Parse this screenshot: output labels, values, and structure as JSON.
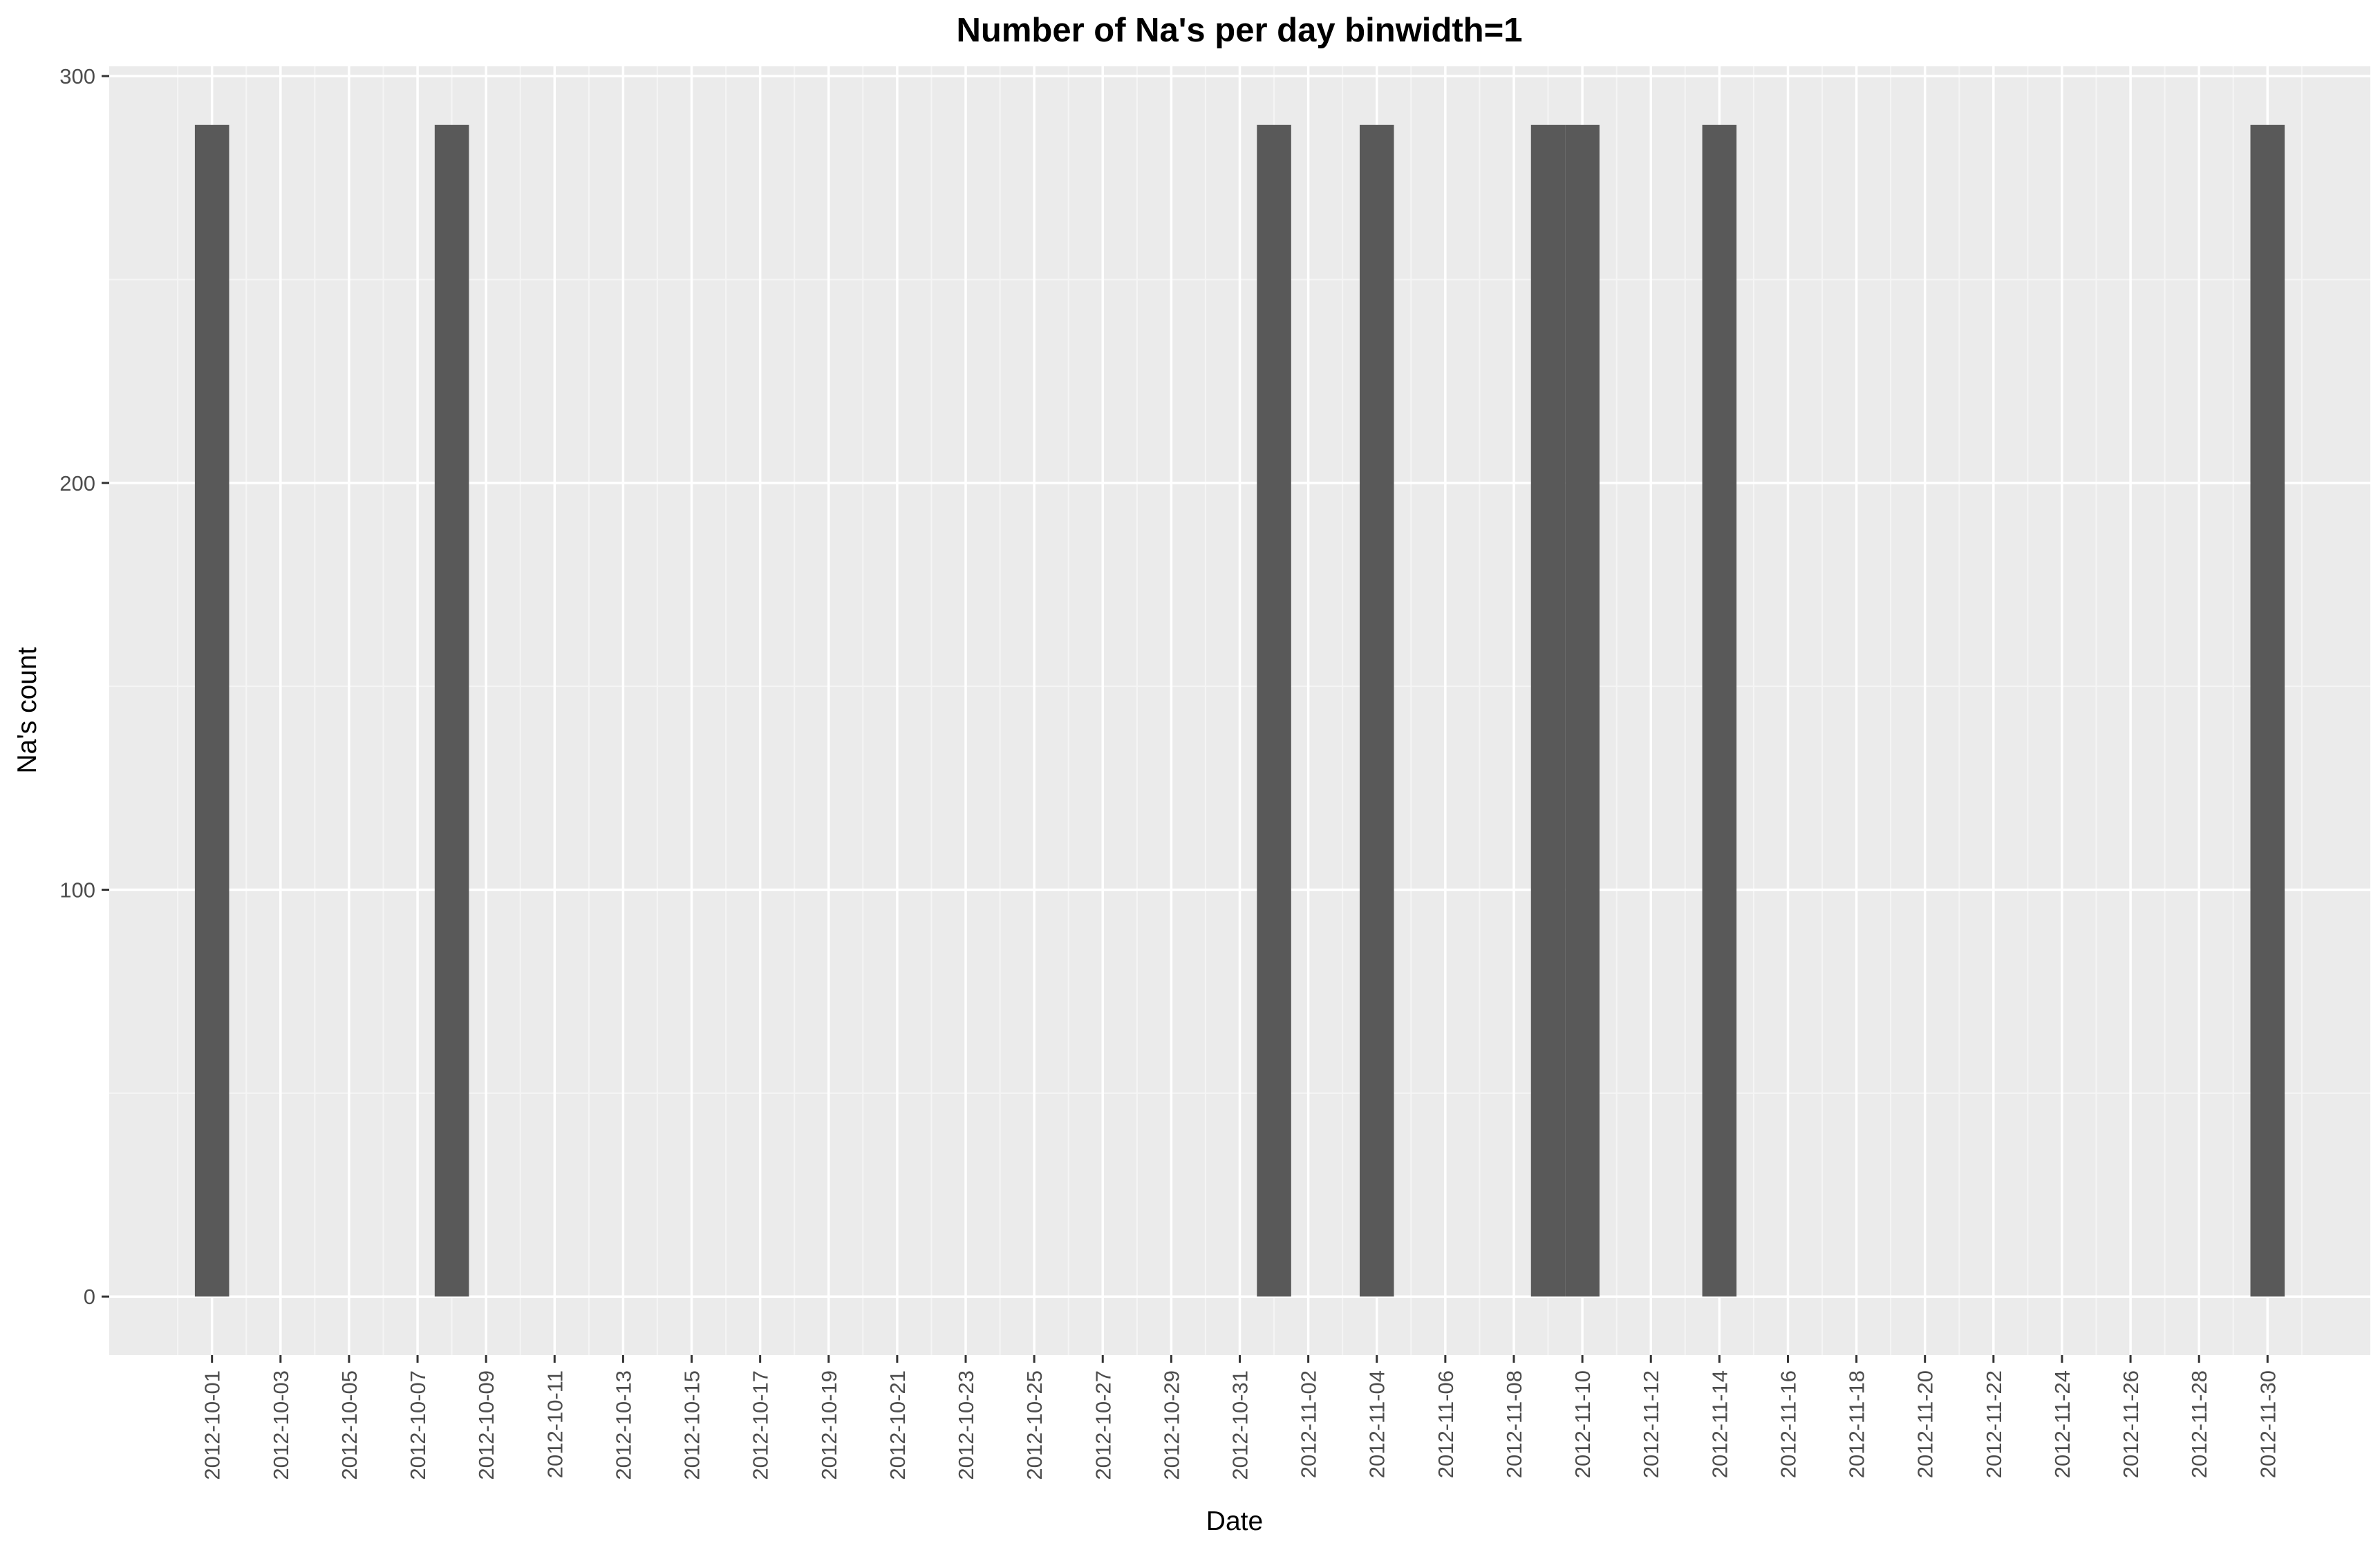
{
  "chart_data": {
    "type": "bar",
    "title": "Number of Na's per day binwidth=1",
    "xlabel": "Date",
    "ylabel": "Na's count",
    "x_range": [
      "2012-09-28",
      "2012-12-03"
    ],
    "ylim": [
      -14.4,
      302.4
    ],
    "yticks": [
      0,
      100,
      200,
      300
    ],
    "xticks": [
      "2012-10-01",
      "2012-10-03",
      "2012-10-05",
      "2012-10-07",
      "2012-10-09",
      "2012-10-11",
      "2012-10-13",
      "2012-10-15",
      "2012-10-17",
      "2012-10-19",
      "2012-10-21",
      "2012-10-23",
      "2012-10-25",
      "2012-10-27",
      "2012-10-29",
      "2012-10-31",
      "2012-11-02",
      "2012-11-04",
      "2012-11-06",
      "2012-11-08",
      "2012-11-10",
      "2012-11-12",
      "2012-11-14",
      "2012-11-16",
      "2012-11-18",
      "2012-11-20",
      "2012-11-22",
      "2012-11-24",
      "2012-11-26",
      "2012-11-28",
      "2012-11-30"
    ],
    "categories": [
      "2012-10-01",
      "2012-10-08",
      "2012-11-01",
      "2012-11-04",
      "2012-11-09",
      "2012-11-10",
      "2012-11-14",
      "2012-11-30"
    ],
    "values": [
      288,
      288,
      288,
      288,
      288,
      288,
      288,
      288
    ],
    "grid": true,
    "colors": {
      "bar": "#595959",
      "panel": "#ebebeb",
      "grid_major": "#ffffff",
      "grid_minor": "#f5f5f5",
      "tick": "#333333"
    }
  }
}
